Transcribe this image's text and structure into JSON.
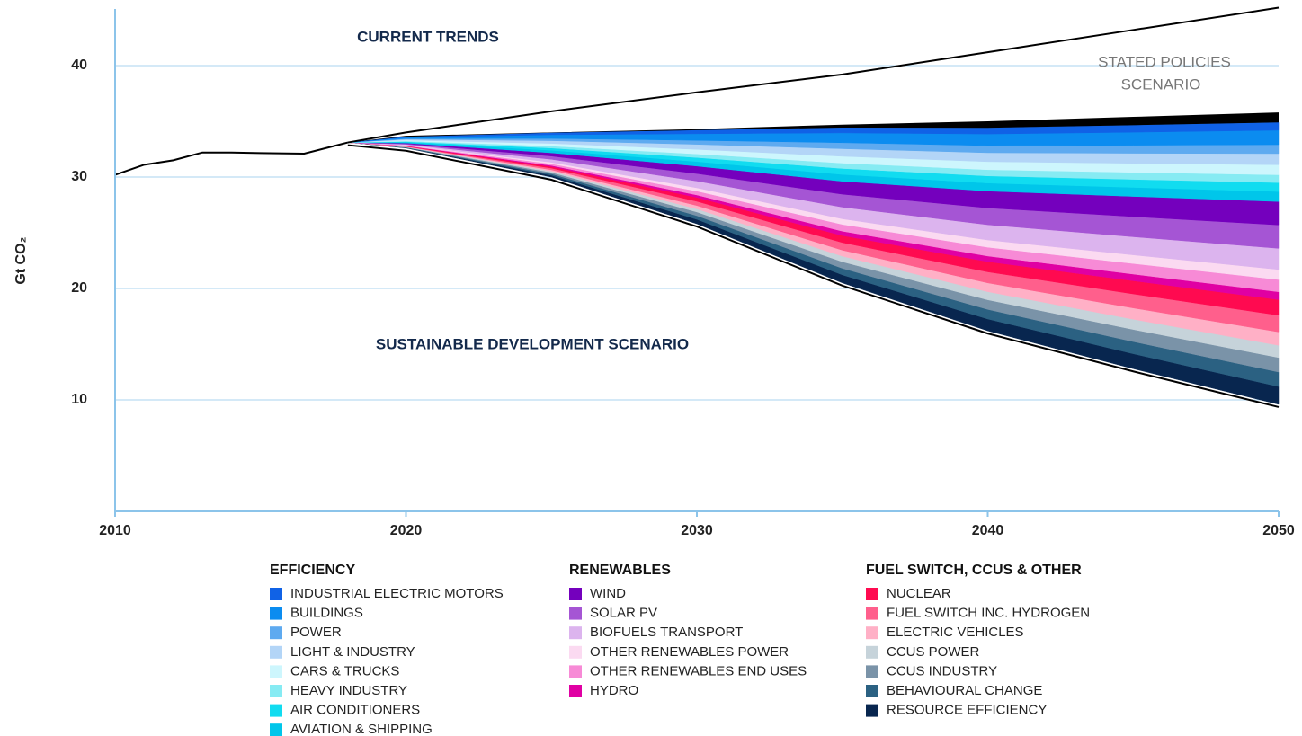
{
  "chart_data": {
    "type": "stacked_area",
    "ylabel": "Gt CO₂",
    "xlim": [
      2010,
      2050
    ],
    "xticks": [
      2010,
      2020,
      2030,
      2040,
      2050
    ],
    "ylim": [
      0,
      45
    ],
    "yticks": [
      10,
      20,
      30,
      40
    ],
    "grid": true,
    "annotations": {
      "current_trends": "CURRENT TRENDS",
      "stated_policies": [
        "STATED POLICIES",
        "SCENARIO"
      ],
      "sustainable_development": "SUSTAINABLE DEVELOPMENT SCENARIO"
    },
    "history_x": [
      2010,
      2011,
      2012,
      2013,
      2014,
      2015,
      2016.5,
      2018
    ],
    "history": [
      30.2,
      31.1,
      31.5,
      32.2,
      32.2,
      32.15,
      32.1,
      33.1
    ],
    "x": [
      2018,
      2020,
      2025,
      2030,
      2035,
      2040,
      2045,
      2050
    ],
    "current_trends": [
      33.1,
      34.0,
      35.9,
      37.6,
      39.2,
      41.2,
      43.2,
      45.2
    ],
    "stated_policies": [
      33.1,
      33.7,
      34.0,
      34.3,
      34.7,
      35.0,
      35.4,
      35.8
    ],
    "sustainable_development": [
      33.1,
      32.6,
      30.0,
      25.8,
      20.5,
      16.2,
      12.8,
      9.6
    ],
    "groups": [
      {
        "title": "EFFICIENCY",
        "series": [
          {
            "name": "INDUSTRIAL ELECTRIC MOTORS",
            "color": "#1062e6",
            "values": [
              0,
              0.06,
              0.18,
              0.32,
              0.48,
              0.56,
              0.63,
              0.7
            ]
          },
          {
            "name": "BUILDINGS",
            "color": "#0b8cf0",
            "values": [
              0,
              0.1,
              0.33,
              0.59,
              0.88,
              1.04,
              1.17,
              1.3
            ]
          },
          {
            "name": "POWER",
            "color": "#5eaaf0",
            "values": [
              0,
              0.06,
              0.2,
              0.36,
              0.54,
              0.64,
              0.72,
              0.8
            ]
          },
          {
            "name": "LIGHT & INDUSTRY",
            "color": "#b3d5f7",
            "values": [
              0,
              0.08,
              0.25,
              0.45,
              0.68,
              0.8,
              0.9,
              1.0
            ]
          },
          {
            "name": "CARS & TRUCKS",
            "color": "#cdf6fd",
            "values": [
              0,
              0.07,
              0.23,
              0.41,
              0.61,
              0.72,
              0.81,
              0.9
            ]
          },
          {
            "name": "HEAVY INDUSTRY",
            "color": "#86ebf3",
            "values": [
              0,
              0.06,
              0.18,
              0.32,
              0.48,
              0.56,
              0.63,
              0.7
            ]
          },
          {
            "name": "AIR CONDITIONERS",
            "color": "#11dcf0",
            "values": [
              0,
              0.06,
              0.2,
              0.36,
              0.54,
              0.64,
              0.72,
              0.8
            ]
          },
          {
            "name": "AVIATION & SHIPPING",
            "color": "#00c6ea",
            "values": [
              0,
              0.07,
              0.23,
              0.41,
              0.61,
              0.72,
              0.81,
              0.9
            ]
          }
        ]
      },
      {
        "title": "RENEWABLES",
        "series": [
          {
            "name": "WIND",
            "color": "#7400bd",
            "values": [
              0,
              0.06,
              0.29,
              0.67,
              1.16,
              1.51,
              1.81,
              2.1
            ]
          },
          {
            "name": "SOLAR PV",
            "color": "#a555d4",
            "values": [
              0,
              0.06,
              0.29,
              0.67,
              1.16,
              1.51,
              1.81,
              2.1
            ]
          },
          {
            "name": "BIOFUELS TRANSPORT",
            "color": "#dcb4ee",
            "values": [
              0,
              0.06,
              0.27,
              0.61,
              1.05,
              1.37,
              1.63,
              1.9
            ]
          },
          {
            "name": "OTHER RENEWABLES POWER",
            "color": "#fbdaf1",
            "values": [
              0,
              0.03,
              0.13,
              0.29,
              0.5,
              0.65,
              0.77,
              0.9
            ]
          },
          {
            "name": "OTHER RENEWABLES END USES",
            "color": "#f78ad6",
            "values": [
              0,
              0.03,
              0.15,
              0.35,
              0.61,
              0.79,
              0.95,
              1.1
            ]
          },
          {
            "name": "HYDRO",
            "color": "#e000a3",
            "values": [
              0,
              0.02,
              0.1,
              0.22,
              0.39,
              0.5,
              0.6,
              0.7
            ]
          }
        ]
      },
      {
        "title": "FUEL SWITCH, CCUS & OTHER",
        "series": [
          {
            "name": "NUCLEAR",
            "color": "#ff0a50",
            "values": [
              0,
              0.03,
              0.14,
              0.35,
              0.63,
              0.92,
              1.18,
              1.4
            ]
          },
          {
            "name": "FUEL SWITCH INC. HYDROGEN",
            "color": "#ff5f8c",
            "values": [
              0,
              0.03,
              0.15,
              0.38,
              0.68,
              0.99,
              1.26,
              1.5
            ]
          },
          {
            "name": "ELECTRIC VEHICLES",
            "color": "#ffb0c6",
            "values": [
              0,
              0.02,
              0.12,
              0.3,
              0.54,
              0.79,
              1.01,
              1.2
            ]
          },
          {
            "name": "CCUS POWER",
            "color": "#c6d3da",
            "values": [
              0,
              0.02,
              0.11,
              0.28,
              0.5,
              0.73,
              0.92,
              1.1
            ]
          },
          {
            "name": "CCUS INDUSTRY",
            "color": "#7a93a8",
            "values": [
              0,
              0.03,
              0.13,
              0.33,
              0.59,
              0.86,
              1.09,
              1.3
            ]
          },
          {
            "name": "BEHAVIOURAL CHANGE",
            "color": "#2b6182",
            "values": [
              0,
              0.03,
              0.13,
              0.33,
              0.59,
              0.86,
              1.09,
              1.3
            ]
          },
          {
            "name": "RESOURCE EFFICIENCY",
            "color": "#08264f",
            "values": [
              0,
              0.03,
              0.16,
              0.4,
              0.72,
              1.06,
              1.34,
              1.6
            ]
          }
        ]
      }
    ]
  }
}
